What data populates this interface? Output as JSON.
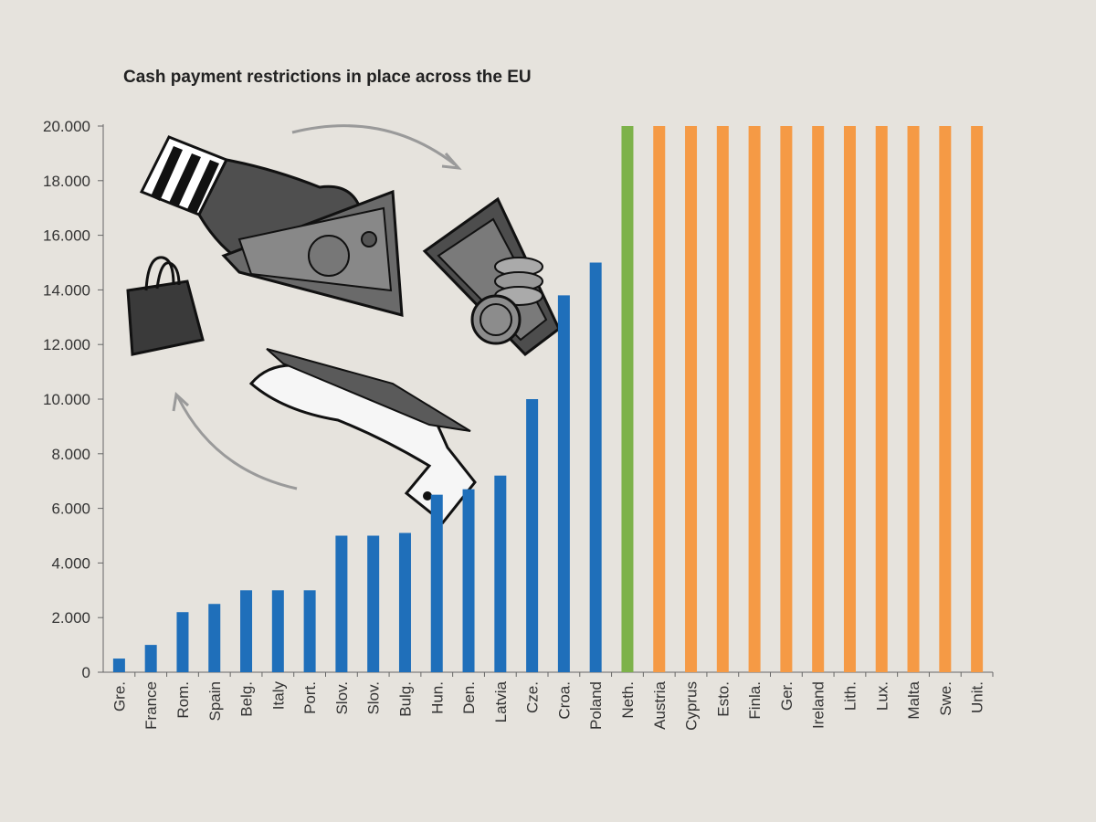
{
  "chart_data": {
    "type": "bar",
    "title": "Cash payment restrictions in place across the EU",
    "xlabel": "",
    "ylabel": "",
    "ylim": [
      0,
      20000
    ],
    "yticks": [
      0,
      2000,
      4000,
      6000,
      8000,
      10000,
      12000,
      14000,
      16000,
      18000,
      20000
    ],
    "ytick_labels": [
      "0",
      "2.000",
      "4.000",
      "6.000",
      "8.000",
      "10.000",
      "12.000",
      "14.000",
      "16.000",
      "18.000",
      "20.000"
    ],
    "grid": false,
    "legend": "none",
    "categories": [
      "Gre.",
      "France",
      "Rom.",
      "Spain",
      "Belg.",
      "Italy",
      "Port.",
      "Slov.",
      "Slov.",
      "Bulg.",
      "Hun.",
      "Den.",
      "Latvia",
      "Cze.",
      "Croa.",
      "Poland",
      "Neth.",
      "Austria",
      "Cyprus",
      "Esto.",
      "Finla.",
      "Ger.",
      "Ireland",
      "Lith.",
      "Lux.",
      "Malta",
      "Swe.",
      "Unit."
    ],
    "values": [
      500,
      1000,
      2200,
      2500,
      3000,
      3000,
      3000,
      5000,
      5000,
      5100,
      6500,
      6700,
      7200,
      10000,
      13800,
      15000,
      20000,
      20000,
      20000,
      20000,
      20000,
      20000,
      20000,
      20000,
      20000,
      20000,
      20000,
      20000
    ],
    "bar_colors": [
      "#1f6fba",
      "#1f6fba",
      "#1f6fba",
      "#1f6fba",
      "#1f6fba",
      "#1f6fba",
      "#1f6fba",
      "#1f6fba",
      "#1f6fba",
      "#1f6fba",
      "#1f6fba",
      "#1f6fba",
      "#1f6fba",
      "#1f6fba",
      "#1f6fba",
      "#1f6fba",
      "#7db24a",
      "#f59a45",
      "#f59a45",
      "#f59a45",
      "#f59a45",
      "#f59a45",
      "#f59a45",
      "#f59a45",
      "#f59a45",
      "#f59a45",
      "#f59a45",
      "#f59a45"
    ]
  },
  "illustration": {
    "icons": [
      "striped-sleeve-hand-icon",
      "banknote-icon",
      "shopping-bag-icon",
      "cash-and-coins-icon",
      "open-hand-icon",
      "cycle-arrow-icon"
    ]
  }
}
